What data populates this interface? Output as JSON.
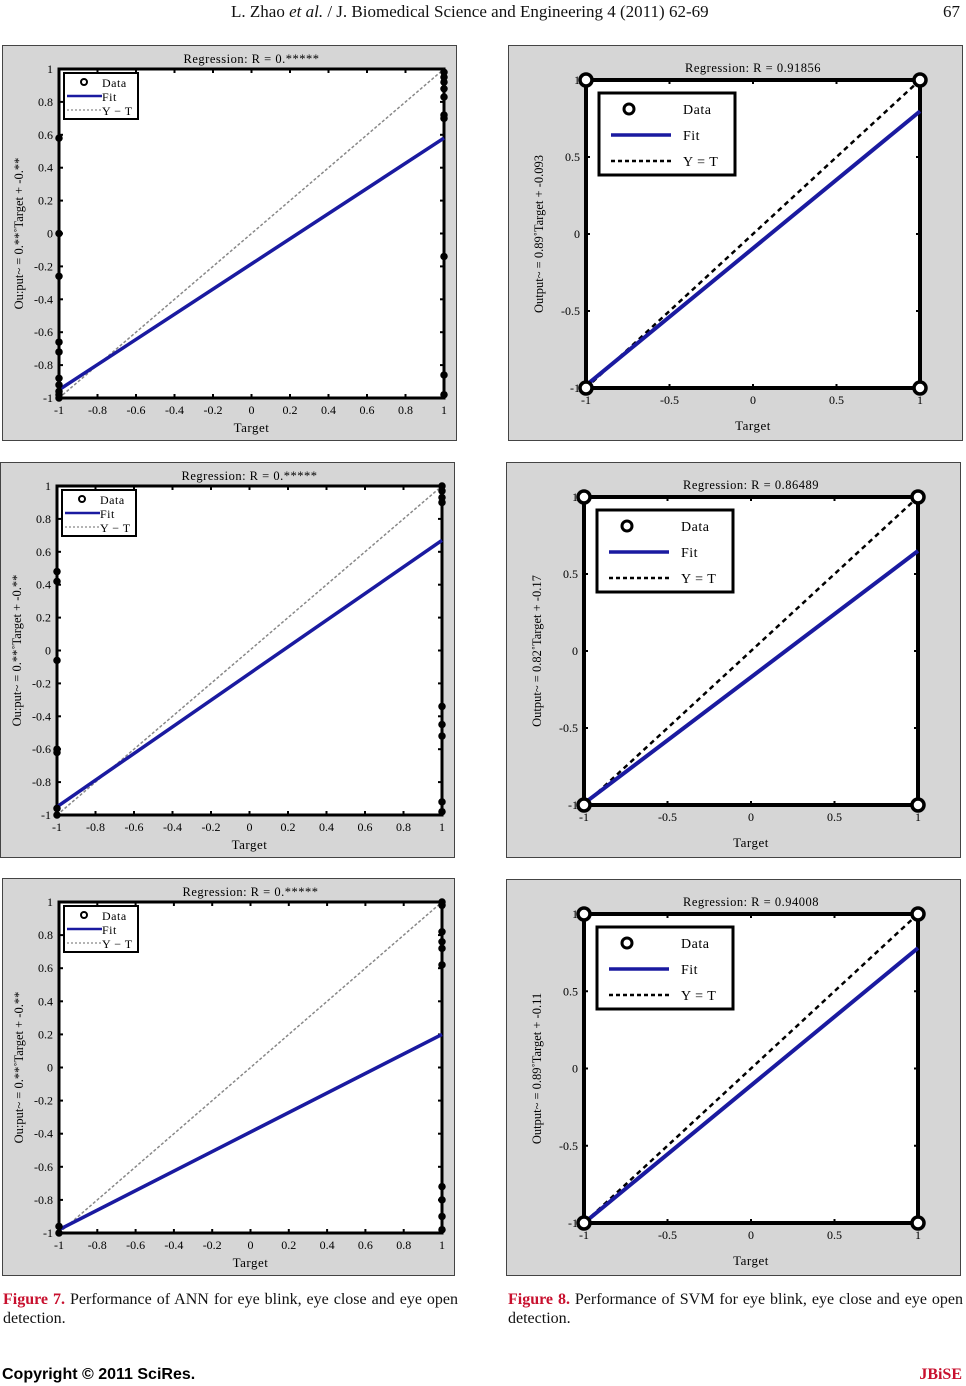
{
  "header": {
    "running_title_author": "L. Zhao ",
    "running_title_etal": "et al.",
    "running_title_rest": " / J. Biomedical Science and Engineering 4 (2011) 62-69",
    "page_number": "67"
  },
  "captions": [
    {
      "label": "Figure 7.",
      "text": " Performance of ANN for eye blink, eye close and eye open detection."
    },
    {
      "label": "Figure 8.",
      "text": " Performance of SVM for eye blink, eye close and eye open detection."
    }
  ],
  "footer": {
    "copyright": "Copyright © 2011 SciRes.",
    "journal": "JBiSE"
  },
  "colors": {
    "fit": "#1a1aa0",
    "caption_label": "#c8102e",
    "panel_bg": "#d6d6d6"
  },
  "chart_data": [
    {
      "type": "line",
      "title": "Regression: R = 0.*****",
      "xlabel": "Target",
      "ylabel": "Ou:put~ = 0.**˚Target + -0.**",
      "xlim": [
        -1,
        1
      ],
      "ylim": [
        -1,
        1
      ],
      "xticks": [
        "-1",
        "-0.8",
        "-0.6",
        "-0.4",
        "-0.2",
        "0",
        "0.2",
        "0.4",
        "0.6",
        "0.8",
        "1"
      ],
      "yticks": [
        "-1",
        "-0.8",
        "-0.6",
        "-0.4",
        "-0.2",
        "0",
        "0.2",
        "0.4",
        "0.6",
        "0.8",
        "1"
      ],
      "legend": [
        "Data",
        "Fit",
        "Y − T"
      ],
      "legend_position": "top-left",
      "fit": {
        "x": [
          -1,
          1
        ],
        "y": [
          -0.95,
          0.58
        ]
      },
      "identity": {
        "x": [
          -1,
          1
        ],
        "y": [
          -1,
          1
        ]
      },
      "points": {
        "x": [
          -1,
          -1,
          -1,
          -1,
          -1,
          -1,
          -1,
          -1,
          -1,
          -1,
          1,
          1,
          1,
          1,
          1,
          1,
          1,
          1,
          1,
          1
        ],
        "y": [
          0.58,
          0,
          -0.26,
          -0.66,
          -0.72,
          -0.88,
          -0.92,
          -0.96,
          -0.98,
          -1,
          0.98,
          0.95,
          0.92,
          0.88,
          0.83,
          0.72,
          0.7,
          -0.14,
          -0.86,
          -0.98
        ]
      }
    },
    {
      "type": "line",
      "title": "Regression: R = 0.91856",
      "xlabel": "Target",
      "ylabel": "Output~ = 0.89˚Target + -0.093",
      "xlim": [
        -1,
        1
      ],
      "ylim": [
        -1,
        1
      ],
      "xticks": [
        "-1",
        "-0.5",
        "0",
        "0.5",
        "1"
      ],
      "yticks": [
        "-1",
        "-0.5",
        "0",
        "0.5",
        "1"
      ],
      "legend": [
        "Data",
        "Fit",
        "Y = T"
      ],
      "legend_position": "top-left",
      "fit": {
        "x": [
          -1,
          1
        ],
        "y": [
          -0.983,
          0.797
        ]
      },
      "identity": {
        "x": [
          -1,
          1
        ],
        "y": [
          -1,
          1
        ]
      },
      "points": {
        "x": [
          -1,
          -1,
          1,
          1
        ],
        "y": [
          -1,
          1,
          -1,
          1
        ]
      }
    },
    {
      "type": "line",
      "title": "Regression: R = 0.*****",
      "xlabel": "Target",
      "ylabel": "Ou:put~ = 0.**˚Target + -0.**",
      "xlim": [
        -1,
        1
      ],
      "ylim": [
        -1,
        1
      ],
      "xticks": [
        "-1",
        "-0.8",
        "-0.6",
        "-0.4",
        "-0.2",
        "0",
        "0.2",
        "0.4",
        "0.6",
        "0.8",
        "1"
      ],
      "yticks": [
        "-1",
        "-0.8",
        "-0.6",
        "-0.4",
        "-0.2",
        "0",
        "0.2",
        "0.4",
        "0.6",
        "0.8",
        "1"
      ],
      "legend": [
        "Data",
        "Fit",
        "Y − T"
      ],
      "legend_position": "top-left",
      "fit": {
        "x": [
          -1,
          1
        ],
        "y": [
          -0.95,
          0.67
        ]
      },
      "identity": {
        "x": [
          -1,
          1
        ],
        "y": [
          -1,
          1
        ]
      },
      "points": {
        "x": [
          -1,
          -1,
          -1,
          -1,
          -1,
          -1,
          -1,
          1,
          1,
          1,
          1,
          1,
          1,
          1,
          1,
          1
        ],
        "y": [
          0.48,
          0.42,
          -0.06,
          -0.6,
          -0.62,
          -0.96,
          -1,
          1,
          0.97,
          0.93,
          0.9,
          -0.34,
          -0.45,
          -0.52,
          -0.92,
          -0.98
        ]
      }
    },
    {
      "type": "line",
      "title": "Regression: R = 0.86489",
      "xlabel": "Target",
      "ylabel": "Output~ = 0.82˚Target + -0.17",
      "xlim": [
        -1,
        1
      ],
      "ylim": [
        -1,
        1
      ],
      "xticks": [
        "-1",
        "-0.5",
        "0",
        "0.5",
        "1"
      ],
      "yticks": [
        "-1",
        "-0.5",
        "0",
        "0.5",
        "1"
      ],
      "legend": [
        "Data",
        "Fit",
        "Y = T"
      ],
      "legend_position": "top-left",
      "fit": {
        "x": [
          -1,
          1
        ],
        "y": [
          -0.99,
          0.65
        ]
      },
      "identity": {
        "x": [
          -1,
          1
        ],
        "y": [
          -1,
          1
        ]
      },
      "points": {
        "x": [
          -1,
          -1,
          1,
          1
        ],
        "y": [
          -1,
          1,
          -1,
          1
        ]
      }
    },
    {
      "type": "line",
      "title": "Regression: R = 0.*****",
      "xlabel": "Target",
      "ylabel": "Ou:put~ = 0.**˚Target + -0.**",
      "xlim": [
        -1,
        1
      ],
      "ylim": [
        -1,
        1
      ],
      "xticks": [
        "-1",
        "-0.8",
        "-0.6",
        "-0.4",
        "-0.2",
        "0",
        "0.2",
        "0.4",
        "0.6",
        "0.8",
        "1"
      ],
      "yticks": [
        "-1",
        "-0.8",
        "-0.6",
        "-0.4",
        "-0.2",
        "0",
        "0.2",
        "0.4",
        "0.6",
        "0.8",
        "1"
      ],
      "legend": [
        "Data",
        "Fit",
        "Y − T"
      ],
      "legend_position": "top-left",
      "fit": {
        "x": [
          -1,
          1
        ],
        "y": [
          -0.98,
          0.2
        ]
      },
      "identity": {
        "x": [
          -1,
          1
        ],
        "y": [
          -1,
          1
        ]
      },
      "points": {
        "x": [
          -1,
          -1,
          1,
          1,
          1,
          1,
          1,
          1,
          1,
          1,
          1,
          1
        ],
        "y": [
          -0.96,
          -1,
          1,
          0.98,
          0.82,
          0.76,
          0.72,
          0.62,
          -0.72,
          -0.8,
          -0.9,
          -0.98
        ]
      }
    },
    {
      "type": "line",
      "title": "Regression: R = 0.94008",
      "xlabel": "Target",
      "ylabel": "Output~ = 0.89˚Target + -0.11",
      "xlim": [
        -1,
        1
      ],
      "ylim": [
        -1,
        1
      ],
      "xticks": [
        "-1",
        "-0.5",
        "0",
        "0.5",
        "1"
      ],
      "yticks": [
        "-1",
        "-0.5",
        "0",
        "0.5",
        "1"
      ],
      "legend": [
        "Data",
        "Fit",
        "Y = T"
      ],
      "legend_position": "top-left",
      "fit": {
        "x": [
          -1,
          1
        ],
        "y": [
          -1.0,
          0.78
        ]
      },
      "identity": {
        "x": [
          -1,
          1
        ],
        "y": [
          -1,
          1
        ]
      },
      "points": {
        "x": [
          -1,
          -1,
          1,
          1
        ],
        "y": [
          -1,
          1,
          -1,
          1
        ]
      }
    }
  ]
}
